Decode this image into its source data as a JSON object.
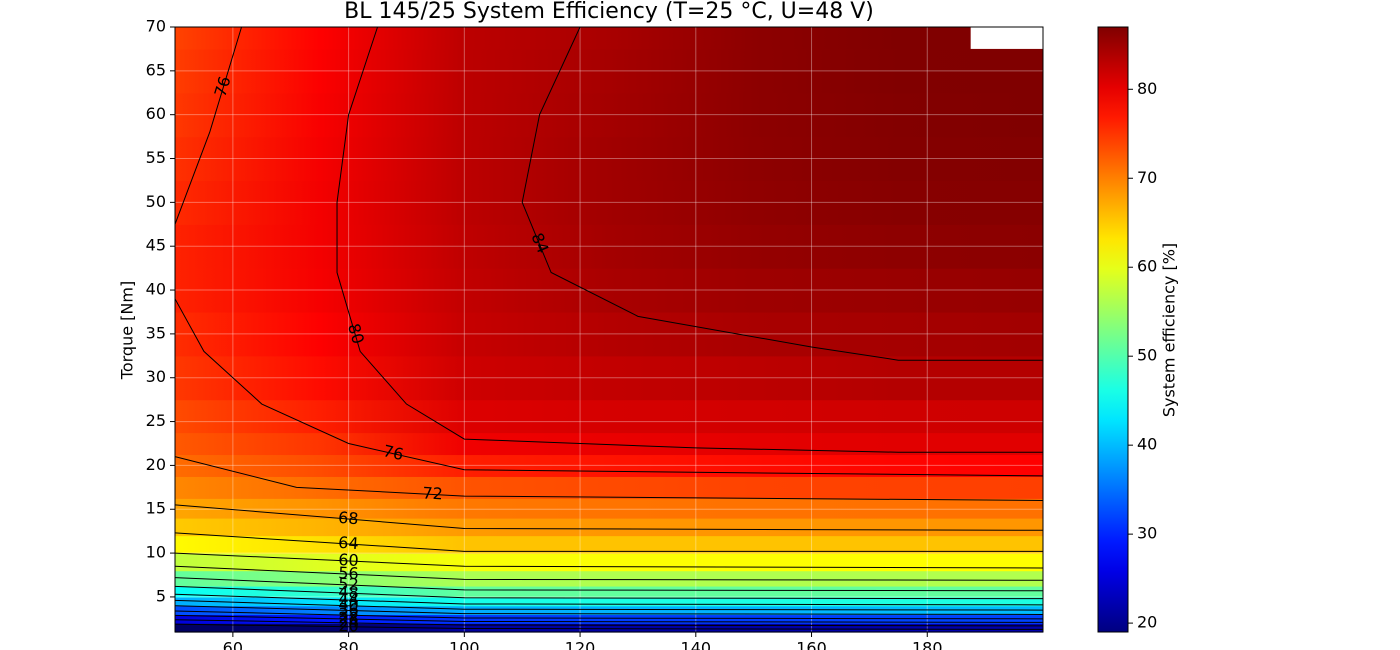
{
  "chart_data": {
    "type": "contour",
    "title": "BL 145/25 System Efficiency (T=25 °C, U=48 V)",
    "y_label": "Torque [Nm]",
    "colorbar_label": "System efficiency [%]",
    "colormap": "jet",
    "grid": true,
    "xlim": [
      50,
      200
    ],
    "ylim": [
      1,
      70
    ],
    "xticks": [
      60,
      80,
      100,
      120,
      140,
      160,
      180
    ],
    "yticks": [
      5,
      10,
      15,
      20,
      25,
      30,
      35,
      40,
      45,
      50,
      55,
      60,
      65,
      70
    ],
    "clim": [
      19,
      87
    ],
    "cticks": [
      20,
      30,
      40,
      50,
      60,
      70,
      80
    ],
    "grid_x": [
      50,
      75,
      100,
      125,
      150,
      175,
      200
    ],
    "grid_y": [
      1.5,
      2.5,
      3.5,
      4.5,
      5.5,
      7,
      9,
      11,
      13,
      15,
      17.5,
      20,
      22.5,
      25,
      30,
      35,
      40,
      45,
      50,
      55,
      60,
      65,
      70
    ],
    "z": [
      [
        17,
        17.5,
        21,
        21.5,
        21.5,
        22,
        22
      ],
      [
        25,
        29,
        31,
        31.5,
        31.5,
        32,
        32
      ],
      [
        32.5,
        36,
        39,
        39.5,
        39.5,
        40,
        40
      ],
      [
        39,
        42.5,
        46,
        46.3,
        46.3,
        46.5,
        46.5
      ],
      [
        45,
        47.8,
        51,
        51,
        51,
        51,
        51
      ],
      [
        51,
        53.5,
        56,
        56.2,
        56.2,
        56.3,
        56.3
      ],
      [
        57.3,
        59.3,
        61,
        61.3,
        61.4,
        61.5,
        61.5
      ],
      [
        61.8,
        63.6,
        65.5,
        65.5,
        65.5,
        65.5,
        65.5
      ],
      [
        65,
        66.5,
        68.2,
        68.4,
        68.5,
        68.5,
        68.5
      ],
      [
        67.5,
        68.7,
        70.5,
        70.8,
        70.9,
        71,
        71
      ],
      [
        69.5,
        71.3,
        73,
        73.6,
        74,
        74.2,
        74.3
      ],
      [
        71.3,
        73.4,
        76.5,
        77.2,
        77.8,
        78.2,
        78.5
      ],
      [
        72.6,
        75,
        79.5,
        79.9,
        80.3,
        80.5,
        80.5
      ],
      [
        73.5,
        76.5,
        80.8,
        81.3,
        81.5,
        81.7,
        81.8
      ],
      [
        74.8,
        77.8,
        81.8,
        82.6,
        83,
        83.5,
        83.5
      ],
      [
        75.5,
        78.6,
        82.3,
        83.5,
        84.2,
        84.5,
        84.7
      ],
      [
        76.2,
        79.1,
        82.6,
        84.2,
        85,
        85.3,
        85.5
      ],
      [
        76.2,
        79.2,
        82.8,
        84.6,
        85.6,
        86,
        86.2
      ],
      [
        75.7,
        79.2,
        83,
        84.8,
        85.9,
        86.5,
        86.6
      ],
      [
        75.2,
        79.1,
        83,
        84.8,
        86,
        86.7,
        86.8
      ],
      [
        74.8,
        78.9,
        83,
        84.6,
        86.1,
        86.8,
        87
      ],
      [
        74.4,
        78.7,
        83,
        84.4,
        86.1,
        86.9,
        87
      ],
      [
        74,
        78.5,
        83,
        84.2,
        86.1,
        87,
        null
      ]
    ],
    "contours": [
      {
        "level": 76,
        "x": [
          61.5,
          56,
          52,
          50
        ],
        "y": [
          70,
          58,
          51,
          47.5
        ]
      },
      {
        "level": 76,
        "x": [
          50,
          55,
          65,
          80,
          100,
          200
        ],
        "y": [
          39,
          33,
          27,
          22.5,
          19.5,
          18.8
        ]
      },
      {
        "level": 80,
        "x": [
          85,
          80,
          78,
          78,
          82,
          90,
          100,
          140,
          175,
          200
        ],
        "y": [
          70,
          60,
          50,
          42,
          33,
          27,
          23,
          22,
          21.5,
          21.5
        ]
      },
      {
        "level": 84,
        "x": [
          120,
          113,
          110,
          115,
          130,
          160,
          175,
          200
        ],
        "y": [
          70,
          60,
          50,
          42,
          37,
          33.5,
          32,
          32
        ]
      },
      {
        "level": 72,
        "x": [
          50,
          71,
          100,
          200
        ],
        "y": [
          21,
          17.5,
          16.5,
          16
        ]
      },
      {
        "level": 68,
        "x": [
          50,
          100,
          200
        ],
        "y": [
          15.5,
          12.8,
          12.6
        ]
      },
      {
        "level": 64,
        "x": [
          50,
          100,
          200
        ],
        "y": [
          12.3,
          10.2,
          10.2
        ]
      },
      {
        "level": 60,
        "x": [
          50,
          100,
          200
        ],
        "y": [
          10,
          8.5,
          8.3
        ]
      },
      {
        "level": 56,
        "x": [
          50,
          100,
          200
        ],
        "y": [
          8.5,
          7,
          6.9
        ]
      },
      {
        "level": 52,
        "x": [
          50,
          100,
          200
        ],
        "y": [
          7.2,
          5.8,
          5.7
        ]
      },
      {
        "level": 48,
        "x": [
          50,
          100,
          200
        ],
        "y": [
          6.2,
          4.9,
          4.8
        ]
      },
      {
        "level": 44,
        "x": [
          50,
          100,
          200
        ],
        "y": [
          5.3,
          4.2,
          4.1
        ]
      },
      {
        "level": 40,
        "x": [
          50,
          100,
          200
        ],
        "y": [
          4.6,
          3.6,
          3.5
        ]
      },
      {
        "level": 36,
        "x": [
          50,
          100,
          200
        ],
        "y": [
          4,
          3.1,
          3
        ]
      },
      {
        "level": 32,
        "x": [
          50,
          100,
          200
        ],
        "y": [
          3.4,
          2.6,
          2.5
        ]
      },
      {
        "level": 28,
        "x": [
          50,
          100,
          200
        ],
        "y": [
          2.9,
          2.2,
          2.1
        ]
      },
      {
        "level": 24,
        "x": [
          50,
          100,
          200
        ],
        "y": [
          2.4,
          1.8,
          1.7
        ]
      },
      {
        "level": 20,
        "x": [
          50,
          100,
          200
        ],
        "y": [
          1.9,
          1.4,
          1.3
        ]
      }
    ]
  }
}
